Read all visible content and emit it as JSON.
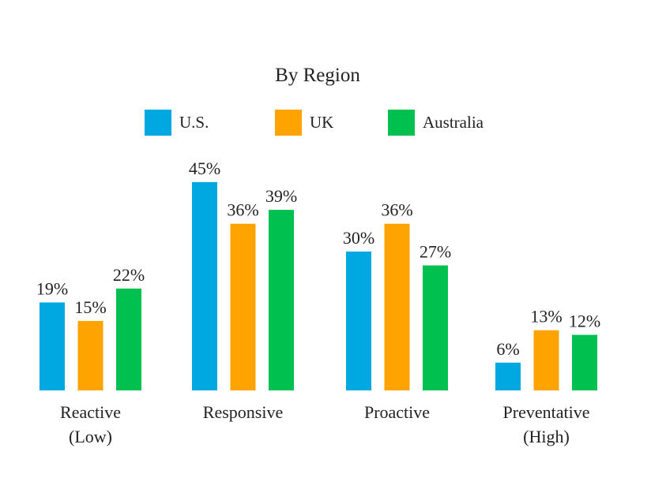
{
  "chart_data": {
    "type": "bar",
    "title": "By Region",
    "categories": [
      [
        "Reactive",
        "(Low)"
      ],
      [
        "Responsive"
      ],
      [
        "Proactive"
      ],
      [
        "Preventative",
        "(High)"
      ]
    ],
    "series": [
      {
        "name": "U.S.",
        "color": "#00A8E1",
        "values": [
          19,
          45,
          30,
          6
        ]
      },
      {
        "name": "UK",
        "color": "#FFA300",
        "values": [
          15,
          36,
          36,
          13
        ]
      },
      {
        "name": "Australia",
        "color": "#00C050",
        "values": [
          22,
          39,
          27,
          12
        ]
      }
    ],
    "value_suffix": "%",
    "ylim": [
      0,
      45
    ],
    "grid": false,
    "legend_position": "top"
  }
}
